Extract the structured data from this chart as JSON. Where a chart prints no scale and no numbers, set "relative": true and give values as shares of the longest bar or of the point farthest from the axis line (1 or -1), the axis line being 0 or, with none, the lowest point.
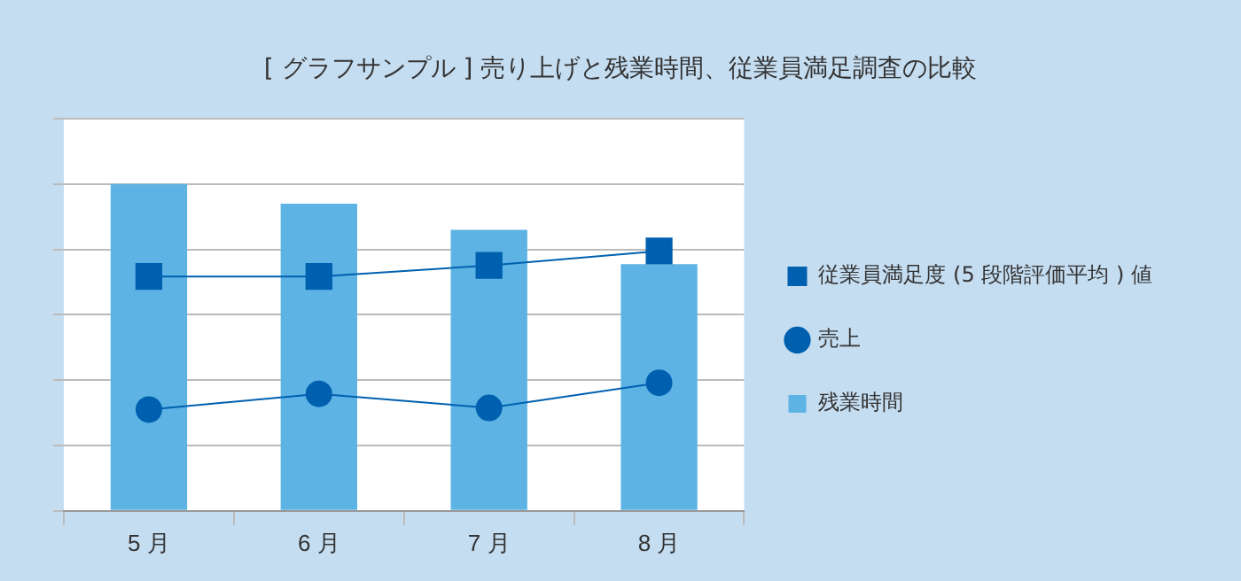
{
  "chart_data": {
    "type": "bar",
    "title": "[ グラフサンプル ] 売り上げと残業時間、従業員満足調査の比較",
    "categories": [
      "5 月",
      "6 月",
      "7 月",
      "8 月"
    ],
    "relative": true,
    "grid": "y",
    "legend": "right",
    "series": [
      {
        "name": "残業時間",
        "color": "#5db3e3",
        "values": [
          1,
          0.94,
          0.86,
          0.755
        ]
      },
      {
        "name": "従業員満足度 (5 段階評価平均 ) 値",
        "type": "line",
        "marker": "square",
        "color": "#0060b0",
        "values": [
          0.717,
          0.717,
          0.751,
          0.795
        ]
      },
      {
        "name": "売上",
        "type": "line",
        "marker": "circle",
        "color": "#0060b0",
        "values": [
          0.31,
          0.358,
          0.315,
          0.392
        ]
      }
    ]
  }
}
